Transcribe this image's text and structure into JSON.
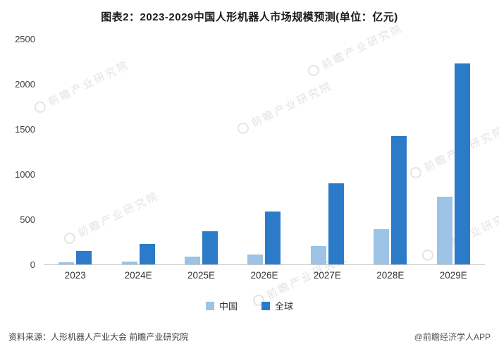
{
  "title": "图表2：2023-2029中国人形机器人市场规模预测(单位：亿元)",
  "watermark": {
    "text": "前瞻产业研究院"
  },
  "legend": [
    {
      "label": "中国",
      "color": "#9DC3E6"
    },
    {
      "label": "全球",
      "color": "#2B7BC9"
    }
  ],
  "footer": {
    "source": "资料来源：人形机器人产业大会 前瞻产业研究院",
    "credit": "@前瞻经济学人APP"
  },
  "chart_data": {
    "type": "bar",
    "title": "图表2：2023-2029中国人形机器人市场规模预测(单位：亿元)",
    "categories": [
      "2023",
      "2024E",
      "2025E",
      "2026E",
      "2027E",
      "2028E",
      "2029E"
    ],
    "series": [
      {
        "name": "中国",
        "key": "china",
        "color": "#9DC3E6",
        "values": [
          20,
          30,
          85,
          110,
          200,
          390,
          750
        ]
      },
      {
        "name": "全球",
        "key": "global",
        "color": "#2B7BC9",
        "values": [
          145,
          230,
          365,
          585,
          900,
          1420,
          2230
        ]
      }
    ],
    "xlabel": "",
    "ylabel": "",
    "ylim": [
      0,
      2500
    ],
    "yticks": [
      0,
      500,
      1000,
      1500,
      2000,
      2500
    ],
    "grid": false,
    "legend_position": "bottom"
  }
}
